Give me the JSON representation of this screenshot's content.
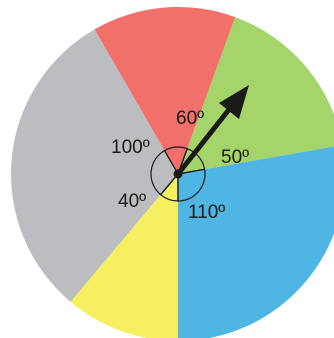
{
  "spinner": {
    "sectors": [
      {
        "name": "green",
        "angle": 60,
        "color": "#a5d46a",
        "label": "60º"
      },
      {
        "name": "red",
        "angle": 50,
        "color": "#f2706a",
        "label": "50º"
      },
      {
        "name": "gray",
        "angle": 110,
        "color": "#bcbdc0",
        "label": "110º"
      },
      {
        "name": "yellow",
        "angle": 40,
        "color": "#f6ef62",
        "label": "40º"
      },
      {
        "name": "blue",
        "angle": 100,
        "color": "#4fb5e3",
        "label": "100º"
      }
    ],
    "pointer_color": "#1a1a1a",
    "outline_color": "#1a1a1a"
  }
}
